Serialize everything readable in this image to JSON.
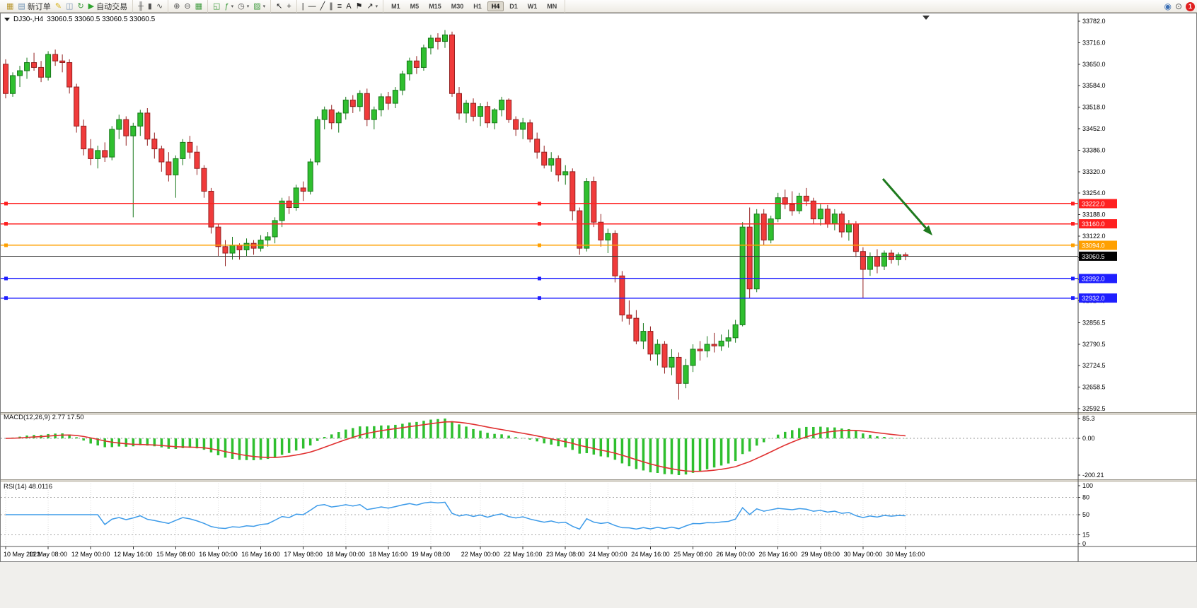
{
  "toolbar": {
    "groups": [
      {
        "name": "file-group",
        "items": [
          {
            "name": "new-chart-icon",
            "glyph": "▦",
            "color": "#b8962e"
          },
          {
            "name": "new-order-button",
            "glyph": "▤",
            "color": "#6b8fb3",
            "label": "新订单"
          },
          {
            "name": "metaeditor-icon",
            "glyph": "✎",
            "color": "#d8b117"
          },
          {
            "name": "market-watch-icon",
            "glyph": "◫",
            "color": "#7b95b5"
          },
          {
            "name": "refresh-icon",
            "glyph": "↻",
            "color": "#3c9a3c"
          },
          {
            "name": "auto-trading-button",
            "glyph": "▶",
            "color": "#2fa32f",
            "label": "自动交易"
          }
        ]
      },
      {
        "name": "chart-type-group",
        "items": [
          {
            "name": "bar-chart-icon",
            "glyph": "╫",
            "color": "#555555"
          },
          {
            "name": "candlestick-chart-icon",
            "glyph": "▮",
            "color": "#555555"
          },
          {
            "name": "line-chart-icon",
            "glyph": "∿",
            "color": "#555555"
          }
        ]
      },
      {
        "name": "zoom-group",
        "items": [
          {
            "name": "zoom-in-icon",
            "glyph": "⊕",
            "color": "#555555"
          },
          {
            "name": "zoom-out-icon",
            "glyph": "⊖",
            "color": "#555555"
          },
          {
            "name": "tile-windows-icon",
            "glyph": "▦",
            "color": "#3c9a3c"
          }
        ]
      },
      {
        "name": "window-group",
        "items": [
          {
            "name": "new-window-icon",
            "glyph": "◱",
            "color": "#3c9a3c"
          },
          {
            "name": "indicators-icon",
            "glyph": "ƒ",
            "color": "#3c9a3c",
            "caret": true
          },
          {
            "name": "period-dropdown-icon",
            "glyph": "◷",
            "color": "#555555",
            "caret": true
          },
          {
            "name": "template-icon",
            "glyph": "▨",
            "color": "#3c9a3c",
            "caret": true
          }
        ]
      },
      {
        "name": "cursor-group",
        "items": [
          {
            "name": "cursor-icon",
            "glyph": "↖",
            "color": "#222222"
          },
          {
            "name": "crosshair-icon",
            "glyph": "+",
            "color": "#222222"
          }
        ]
      },
      {
        "name": "line-tools-group",
        "items": [
          {
            "name": "vertical-line-icon",
            "glyph": "|",
            "color": "#222222"
          },
          {
            "name": "horizontal-line-icon",
            "glyph": "—",
            "color": "#222222"
          },
          {
            "name": "trendline-icon",
            "glyph": "╱",
            "color": "#222222"
          },
          {
            "name": "channel-icon",
            "glyph": "∥",
            "color": "#222222"
          },
          {
            "name": "fibonacci-icon",
            "glyph": "≡",
            "color": "#222222"
          },
          {
            "name": "text-icon",
            "glyph": "A",
            "color": "#222222"
          },
          {
            "name": "label-icon",
            "glyph": "⚑",
            "color": "#222222"
          },
          {
            "name": "shapes-dropdown-icon",
            "glyph": "↗",
            "color": "#222222",
            "caret": true
          }
        ]
      }
    ],
    "timeframes": [
      "M1",
      "M5",
      "M15",
      "M30",
      "H1",
      "H4",
      "D1",
      "W1",
      "MN"
    ],
    "active_timeframe": "H4",
    "right_icons": [
      {
        "name": "community-icon",
        "glyph": "◉",
        "color": "#3b6fb5"
      },
      {
        "name": "search-icon",
        "glyph": "⊙",
        "color": "#555555"
      }
    ],
    "notification_count": "1"
  },
  "chart": {
    "symbol_period": "DJ30-,H4",
    "header_ohlc": "33060.5 33060.5 33060.5 33060.5"
  },
  "chart_data": {
    "type": "candlestick",
    "symbol": "DJ30-",
    "timeframe": "H4",
    "ylim": [
      32592.5,
      33782.0
    ],
    "y_ticks": [
      "33782.0",
      "33716.0",
      "33650.0",
      "33584.0",
      "33518.0",
      "33452.0",
      "33386.0",
      "33320.0",
      "33254.0",
      "33188.0",
      "33122.0",
      "33056.0",
      "32990.0",
      "32924.0",
      "32856.5",
      "32790.5",
      "32724.5",
      "32658.5",
      "32592.5"
    ],
    "x_labels": [
      "10 May 2023",
      "11 May 08:00",
      "12 May 00:00",
      "12 May 16:00",
      "15 May 08:00",
      "16 May 00:00",
      "16 May 16:00",
      "17 May 08:00",
      "18 May 00:00",
      "18 May 16:00",
      "19 May 08:00",
      "22 May 00:00",
      "22 May 16:00",
      "23 May 08:00",
      "24 May 00:00",
      "24 May 16:00",
      "25 May 08:00",
      "26 May 00:00",
      "26 May 16:00",
      "29 May 08:00",
      "30 May 00:00",
      "30 May 16:00"
    ],
    "current_price": 33060.5,
    "current_price_label": "33060.5",
    "colors": {
      "up_fill": "#2fbf2f",
      "up_stroke": "#17781a",
      "down_fill": "#f03b3b",
      "down_stroke": "#932020"
    },
    "hlines": [
      {
        "price": 33222.0,
        "label": "33222.0",
        "color": "#ff2020"
      },
      {
        "price": 33160.0,
        "label": "33160.0",
        "color": "#ff2020"
      },
      {
        "price": 33094.0,
        "label": "33094.0",
        "color": "#ffa000"
      },
      {
        "price": 32992.0,
        "label": "32992.0",
        "color": "#1f1fff"
      },
      {
        "price": 32932.0,
        "label": "32932.0",
        "color": "#1f1fff"
      }
    ],
    "annotations": [
      {
        "type": "arrow",
        "from": [
          1248,
          253
        ],
        "to": [
          1318,
          333
        ],
        "color": "#1e7a1e"
      }
    ],
    "indicators": {
      "macd": {
        "label": "MACD(12,26,9)",
        "fast": 12,
        "slow": 26,
        "smoothing": 9,
        "value": "2.77",
        "signal_value": "17.50",
        "axis_labels": [
          "85.3",
          "0.00",
          "-200.21"
        ],
        "histogram_color": "#2fbf2f",
        "signal_color": "#e03030"
      },
      "rsi": {
        "label": "RSI(14)",
        "period": 14,
        "value": "48.0116",
        "levels": [
          80,
          50,
          15
        ],
        "axis_labels": [
          "100",
          "80",
          "50",
          "15",
          "0"
        ],
        "line_color": "#3d9be9"
      }
    },
    "candles": [
      [
        33650,
        33665,
        33545,
        33560
      ],
      [
        33560,
        33625,
        33550,
        33615
      ],
      [
        33615,
        33645,
        33580,
        33630
      ],
      [
        33630,
        33670,
        33605,
        33655
      ],
      [
        33655,
        33685,
        33630,
        33640
      ],
      [
        33640,
        33660,
        33595,
        33610
      ],
      [
        33610,
        33690,
        33600,
        33680
      ],
      [
        33680,
        33695,
        33645,
        33660
      ],
      [
        33660,
        33680,
        33625,
        33655
      ],
      [
        33655,
        33665,
        33560,
        33580
      ],
      [
        33580,
        33590,
        33440,
        33460
      ],
      [
        33460,
        33480,
        33370,
        33390
      ],
      [
        33390,
        33420,
        33340,
        33360
      ],
      [
        33360,
        33400,
        33330,
        33385
      ],
      [
        33385,
        33410,
        33350,
        33365
      ],
      [
        33365,
        33460,
        33355,
        33450
      ],
      [
        33450,
        33495,
        33420,
        33480
      ],
      [
        33480,
        33490,
        33400,
        33430
      ],
      [
        33430,
        33470,
        33180,
        33460
      ],
      [
        33460,
        33510,
        33430,
        33500
      ],
      [
        33500,
        33515,
        33400,
        33420
      ],
      [
        33420,
        33440,
        33360,
        33390
      ],
      [
        33390,
        33400,
        33320,
        33350
      ],
      [
        33350,
        33380,
        33290,
        33310
      ],
      [
        33310,
        33370,
        33240,
        33360
      ],
      [
        33360,
        33420,
        33340,
        33410
      ],
      [
        33410,
        33430,
        33360,
        33380
      ],
      [
        33380,
        33400,
        33310,
        33330
      ],
      [
        33330,
        33340,
        33240,
        33260
      ],
      [
        33260,
        33270,
        33130,
        33150
      ],
      [
        33150,
        33160,
        33060,
        33090
      ],
      [
        33090,
        33110,
        33030,
        33070
      ],
      [
        33070,
        33120,
        33050,
        33095
      ],
      [
        33095,
        33100,
        33050,
        33080
      ],
      [
        33080,
        33115,
        33060,
        33100
      ],
      [
        33100,
        33110,
        33065,
        33085
      ],
      [
        33085,
        33125,
        33075,
        33110
      ],
      [
        33110,
        33135,
        33090,
        33120
      ],
      [
        33120,
        33180,
        33100,
        33170
      ],
      [
        33170,
        33240,
        33150,
        33230
      ],
      [
        33230,
        33245,
        33190,
        33210
      ],
      [
        33210,
        33280,
        33200,
        33270
      ],
      [
        33270,
        33290,
        33230,
        33260
      ],
      [
        33260,
        33360,
        33250,
        33350
      ],
      [
        33350,
        33490,
        33340,
        33480
      ],
      [
        33480,
        33520,
        33450,
        33510
      ],
      [
        33510,
        33525,
        33450,
        33470
      ],
      [
        33470,
        33505,
        33440,
        33500
      ],
      [
        33500,
        33550,
        33480,
        33540
      ],
      [
        33540,
        33555,
        33500,
        33520
      ],
      [
        33520,
        33570,
        33505,
        33560
      ],
      [
        33560,
        33575,
        33460,
        33480
      ],
      [
        33480,
        33520,
        33450,
        33510
      ],
      [
        33510,
        33560,
        33490,
        33550
      ],
      [
        33550,
        33565,
        33510,
        33530
      ],
      [
        33530,
        33580,
        33515,
        33570
      ],
      [
        33570,
        33630,
        33555,
        33620
      ],
      [
        33620,
        33670,
        33600,
        33660
      ],
      [
        33660,
        33675,
        33620,
        33640
      ],
      [
        33640,
        33710,
        33630,
        33700
      ],
      [
        33700,
        33740,
        33680,
        33730
      ],
      [
        33730,
        33745,
        33695,
        33720
      ],
      [
        33720,
        33755,
        33700,
        33740
      ],
      [
        33740,
        33750,
        33550,
        33560
      ],
      [
        33560,
        33580,
        33480,
        33500
      ],
      [
        33500,
        33540,
        33470,
        33530
      ],
      [
        33530,
        33545,
        33475,
        33490
      ],
      [
        33490,
        33530,
        33460,
        33520
      ],
      [
        33520,
        33535,
        33455,
        33470
      ],
      [
        33470,
        33515,
        33450,
        33510
      ],
      [
        33510,
        33550,
        33490,
        33540
      ],
      [
        33540,
        33545,
        33470,
        33480
      ],
      [
        33480,
        33490,
        33430,
        33450
      ],
      [
        33450,
        33485,
        33420,
        33470
      ],
      [
        33470,
        33480,
        33410,
        33420
      ],
      [
        33420,
        33440,
        33360,
        33380
      ],
      [
        33380,
        33400,
        33330,
        33340
      ],
      [
        33340,
        33380,
        33320,
        33360
      ],
      [
        33360,
        33370,
        33290,
        33310
      ],
      [
        33310,
        33340,
        33280,
        33320
      ],
      [
        33320,
        33330,
        33170,
        33200
      ],
      [
        33200,
        33210,
        33065,
        33085
      ],
      [
        33085,
        33300,
        33075,
        33290
      ],
      [
        33290,
        33305,
        33150,
        33165
      ],
      [
        33165,
        33190,
        33090,
        33110
      ],
      [
        33110,
        33145,
        33070,
        33130
      ],
      [
        33130,
        33140,
        32980,
        33000
      ],
      [
        33000,
        33015,
        32860,
        32880
      ],
      [
        32880,
        32925,
        32850,
        32870
      ],
      [
        32870,
        32895,
        32790,
        32800
      ],
      [
        32800,
        32855,
        32775,
        32830
      ],
      [
        32830,
        32845,
        32740,
        32760
      ],
      [
        32760,
        32805,
        32725,
        32790
      ],
      [
        32790,
        32800,
        32700,
        32720
      ],
      [
        32720,
        32775,
        32695,
        32750
      ],
      [
        32750,
        32765,
        32620,
        32670
      ],
      [
        32670,
        32745,
        32655,
        32725
      ],
      [
        32725,
        32790,
        32705,
        32775
      ],
      [
        32775,
        32800,
        32740,
        32770
      ],
      [
        32770,
        32815,
        32750,
        32790
      ],
      [
        32790,
        32825,
        32765,
        32785
      ],
      [
        32785,
        32820,
        32770,
        32800
      ],
      [
        32800,
        32835,
        32780,
        32810
      ],
      [
        32810,
        32865,
        32795,
        32850
      ],
      [
        32850,
        33165,
        32845,
        33150
      ],
      [
        33150,
        33210,
        32930,
        32960
      ],
      [
        32960,
        33205,
        32950,
        33190
      ],
      [
        33190,
        33205,
        33095,
        33110
      ],
      [
        33110,
        33185,
        33100,
        33175
      ],
      [
        33175,
        33255,
        33165,
        33240
      ],
      [
        33240,
        33265,
        33205,
        33220
      ],
      [
        33220,
        33260,
        33185,
        33200
      ],
      [
        33200,
        33255,
        33190,
        33245
      ],
      [
        33245,
        33270,
        33215,
        33230
      ],
      [
        33230,
        33240,
        33160,
        33175
      ],
      [
        33175,
        33220,
        33155,
        33205
      ],
      [
        33205,
        33218,
        33148,
        33160
      ],
      [
        33160,
        33205,
        33140,
        33190
      ],
      [
        33190,
        33198,
        33118,
        33135
      ],
      [
        33135,
        33172,
        33108,
        33160
      ],
      [
        33160,
        33168,
        33058,
        33075
      ],
      [
        33075,
        33088,
        32932,
        33020
      ],
      [
        33020,
        33072,
        33000,
        33060
      ],
      [
        33060,
        33082,
        33008,
        33030
      ],
      [
        33030,
        33078,
        33018,
        33070
      ],
      [
        33070,
        33080,
        33038,
        33050
      ],
      [
        33050,
        33072,
        33032,
        33065
      ],
      [
        33065,
        33072,
        33048,
        33060.5
      ]
    ]
  }
}
